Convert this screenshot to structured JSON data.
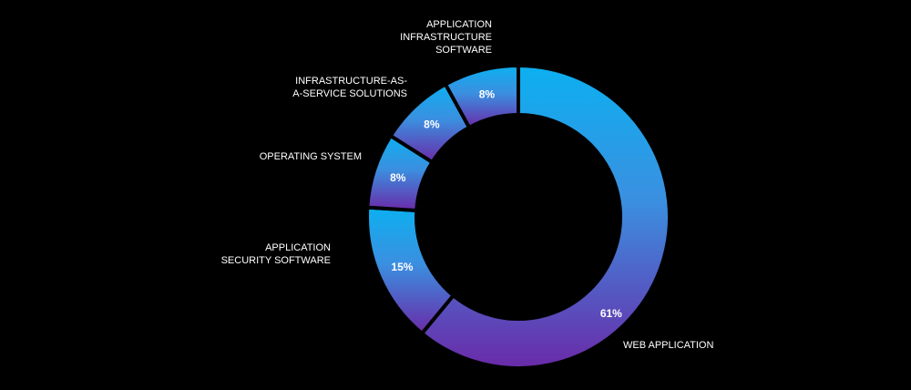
{
  "chart_data": {
    "type": "pie",
    "donut": true,
    "title": "",
    "slices": [
      {
        "label": "WEB APPLICATION",
        "value": 61,
        "value_label": "61%"
      },
      {
        "label": "APPLICATION SECURITY SOFTWARE",
        "label_lines": [
          "APPLICATION",
          "SECURITY SOFTWARE"
        ],
        "value": 15,
        "value_label": "15%"
      },
      {
        "label": "OPERATING SYSTEM",
        "label_lines": [
          "OPERATING SYSTEM"
        ],
        "value": 8,
        "value_label": "8%"
      },
      {
        "label": "INFRASTRUCTURE-AS-A-SERVICE SOLUTIONS",
        "label_lines": [
          "INFRASTRUCTURE-AS-",
          "A-SERVICE SOLUTIONS"
        ],
        "value": 8,
        "value_label": "8%"
      },
      {
        "label": "APPLICATION INFRASTRUCTURE SOFTWARE",
        "label_lines": [
          "APPLICATION",
          "INFRASTRUCTURE",
          "SOFTWARE"
        ],
        "value": 8,
        "value_label": "8%"
      }
    ],
    "colors": {
      "gradient_top": "#0cb0f0",
      "gradient_mid": "#3b8fe0",
      "gradient_bottom": "#6a2aa8",
      "background": "#000000",
      "separator": "#000000"
    }
  }
}
